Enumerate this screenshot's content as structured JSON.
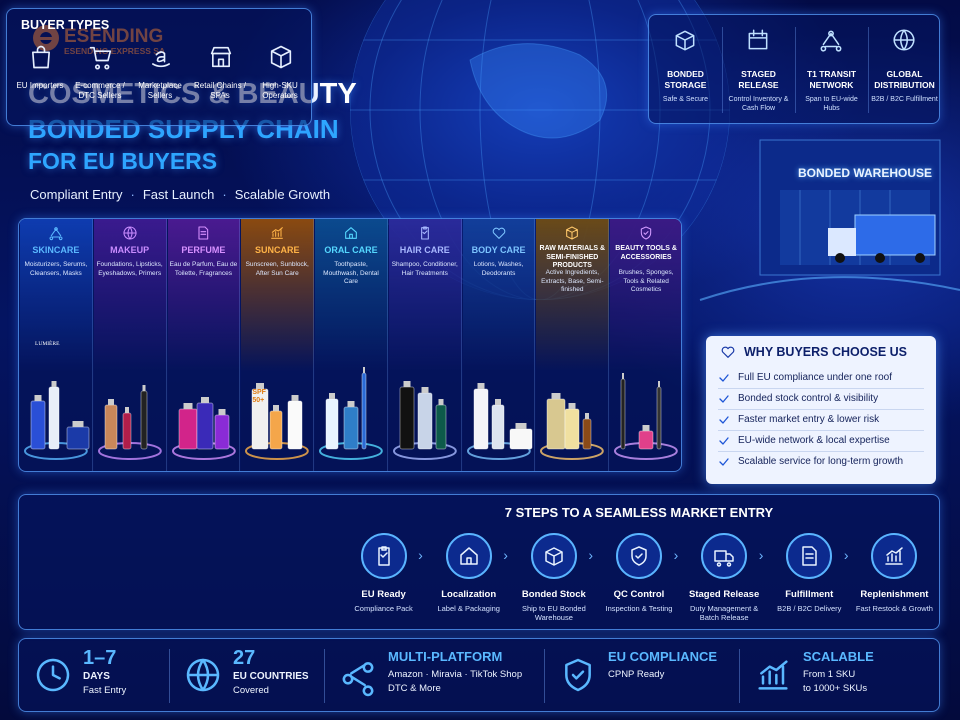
{
  "brand": {
    "name": "ESENDING",
    "sub": "ESENDING EXPRESS SA"
  },
  "header": {
    "title_lines": [
      "COSMETICS & BEAUTY",
      "BONDED SUPPLY CHAIN",
      "FOR EU BUYERS"
    ],
    "taglines": [
      "Compliant Entry",
      "Fast Launch",
      "Scalable Growth"
    ]
  },
  "features": [
    {
      "title": "BONDED STORAGE",
      "desc": "Safe & Secure"
    },
    {
      "title": "STAGED RELEASE",
      "desc": "Control Inventory & Cash Flow"
    },
    {
      "title": "T1 TRANSIT NETWORK",
      "desc": "Span to EU-wide Hubs"
    },
    {
      "title": "GLOBAL DISTRIBUTION",
      "desc": "B2B / B2C Fulfillment"
    }
  ],
  "warehouse_sign": "BONDED WAREHOUSE",
  "categories": [
    {
      "name": "SKINCARE",
      "desc": "Moisturizers, Serums, Cleansers, Masks"
    },
    {
      "name": "MAKEUP",
      "desc": "Foundations, Lipsticks, Eyeshadows, Primers"
    },
    {
      "name": "PERFUME",
      "desc": "Eau de Parfum, Eau de Toilette, Fragrances"
    },
    {
      "name": "SUNCARE",
      "desc": "Sunscreen, Sunblock, After Sun Care"
    },
    {
      "name": "ORAL CARE",
      "desc": "Toothpaste, Mouthwash, Dental Care"
    },
    {
      "name": "HAIR CARE",
      "desc": "Shampoo, Conditioner, Hair Treatments"
    },
    {
      "name": "BODY CARE",
      "desc": "Lotions, Washes, Deodorants"
    },
    {
      "name": "RAW MATERIALS & SEMI-FINISHED PRODUCTS",
      "desc": "Active Ingredients, Extracts, Base, Semi-finished"
    },
    {
      "name": "BEAUTY TOOLS & ACCESSORIES",
      "desc": "Brushes, Sponges, Tools & Related Cosmetics"
    }
  ],
  "product_labels": [
    "LUMIÈRE",
    "SPF 50+"
  ],
  "why": {
    "title": "WHY BUYERS CHOOSE US",
    "items": [
      "Full EU compliance under one roof",
      "Bonded stock control & visibility",
      "Faster market entry & lower risk",
      "EU-wide network & local expertise",
      "Scalable service for long-term growth"
    ]
  },
  "buyer_types": {
    "title": "BUYER TYPES",
    "items": [
      "EU Importers",
      "E-commerce / DTC Sellers",
      "Marketplace Sellers",
      "Retail Chains / SPAs",
      "High-SKU Operators"
    ]
  },
  "steps": {
    "title": "7 STEPS TO A SEAMLESS MARKET ENTRY",
    "items": [
      {
        "name": "EU Ready",
        "desc": "Compliance Pack"
      },
      {
        "name": "Localization",
        "desc": "Label & Packaging"
      },
      {
        "name": "Bonded Stock",
        "desc": "Ship to EU Bonded Warehouse"
      },
      {
        "name": "QC Control",
        "desc": "Inspection & Testing"
      },
      {
        "name": "Staged Release",
        "desc": "Duty Management & Batch Release"
      },
      {
        "name": "Fulfillment",
        "desc": "B2B / B2C Delivery"
      },
      {
        "name": "Replenishment",
        "desc": "Fast Restock & Growth"
      }
    ]
  },
  "stats": [
    {
      "headline": "1–7",
      "lines": [
        "DAYS",
        "Fast Entry"
      ]
    },
    {
      "headline": 27,
      "lines": [
        "EU COUNTRIES",
        "Covered"
      ]
    },
    {
      "headline": "MULTI-PLATFORM",
      "lines": [
        "Amazon · Miravia · TikTok Shop",
        "DTC & More"
      ]
    },
    {
      "headline": "EU COMPLIANCE",
      "lines": [
        "CPNP Ready"
      ]
    },
    {
      "headline": "SCALABLE",
      "lines": [
        "From 1 SKU",
        "to 1000+ SKUs"
      ]
    }
  ]
}
